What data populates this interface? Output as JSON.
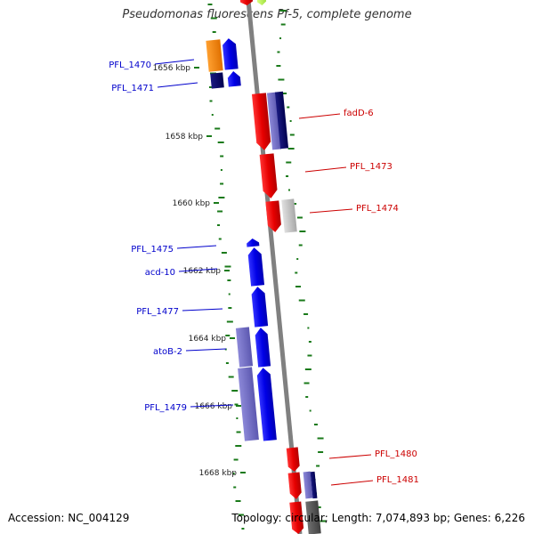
{
  "title": "Pseudomonas fluorescens Pf-5, complete genome",
  "accession_text": "Accession: NC_004129",
  "summary_text": "Topology: circular; Length: 7,074,893 bp; Genes: 6,226",
  "colors": {
    "forward_label": "#0000cc",
    "reverse_label": "#cc0000",
    "backbone": "#808080",
    "gc_ticks": "#1a7a1a"
  },
  "scale_ticks": [
    {
      "label": "1656 kbp"
    },
    {
      "label": "1658 kbp"
    },
    {
      "label": "1660 kbp"
    },
    {
      "label": "1662 kbp"
    },
    {
      "label": "1664 kbp"
    },
    {
      "label": "1666 kbp"
    },
    {
      "label": "1668 kbp"
    }
  ],
  "forward_genes": [
    {
      "label": "PFL_1470"
    },
    {
      "label": "PFL_1471"
    },
    {
      "label": "PFL_1475"
    },
    {
      "label": "acd-10"
    },
    {
      "label": "PFL_1477"
    },
    {
      "label": "atoB-2"
    },
    {
      "label": "PFL_1479"
    }
  ],
  "reverse_genes": [
    {
      "label": "fadD-6"
    },
    {
      "label": "PFL_1473"
    },
    {
      "label": "PFL_1474"
    },
    {
      "label": "PFL_1480"
    },
    {
      "label": "PFL_1481"
    }
  ]
}
